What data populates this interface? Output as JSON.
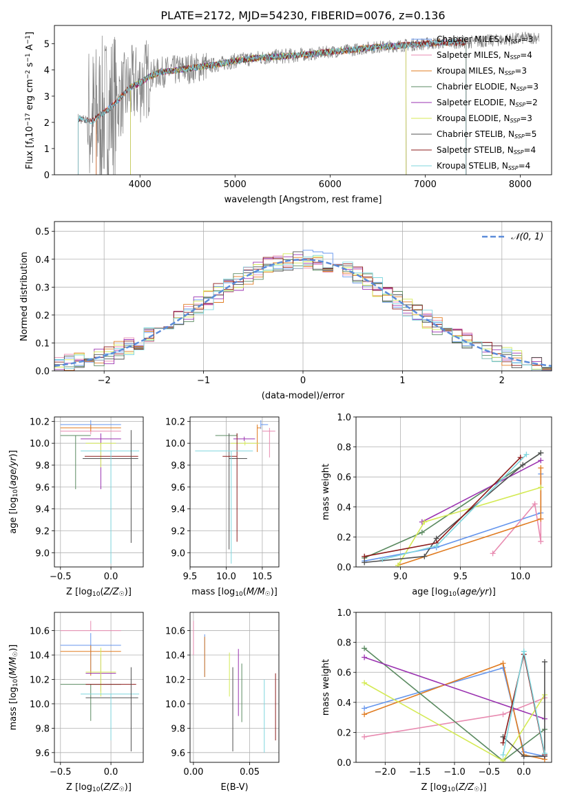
{
  "figure_title": "PLATE=2172, MJD=54230, FIBERID=0076, z=0.136",
  "colors": {
    "series": [
      "#6495ed",
      "#e88ab0",
      "#e07b20",
      "#5a8a60",
      "#9a32b0",
      "#d4ea54",
      "#505050",
      "#8b1a1a",
      "#7fd6de"
    ],
    "obs": "#808080",
    "grid": "#b0b0b0",
    "normal": "#5b8bd9"
  },
  "chart_data": [
    {
      "id": "spectrum",
      "type": "line",
      "title": "PLATE=2172, MJD=54230, FIBERID=0076, z=0.136",
      "xlabel": "wavelength [Angstrom, rest frame]",
      "ylabel": "Flux [f$_\\lambda$10$^{-17}$ erg cm$^{-2}$ s$^{-1}$ A$^{-1}$]",
      "ylabel_parts": [
        "Flux [f",
        "λ",
        "10",
        "−17",
        " erg cm",
        "−2",
        " s",
        "−1",
        " A",
        "−1",
        "]"
      ],
      "xlim": [
        3100,
        8330
      ],
      "ylim": [
        0,
        5.7
      ],
      "xticks": [
        4000,
        5000,
        6000,
        7000,
        8000
      ],
      "yticks": [
        0,
        1,
        2,
        3,
        4,
        5
      ],
      "continuum": [
        [
          3350,
          2.15
        ],
        [
          3500,
          2.05
        ],
        [
          3700,
          2.6
        ],
        [
          3900,
          3.35
        ],
        [
          4000,
          3.5
        ],
        [
          4100,
          3.75
        ],
        [
          4200,
          3.9
        ],
        [
          4400,
          4.0
        ],
        [
          4600,
          4.1
        ],
        [
          4800,
          4.2
        ],
        [
          5000,
          4.35
        ],
        [
          5200,
          4.45
        ],
        [
          5400,
          4.5
        ],
        [
          5600,
          4.55
        ],
        [
          5800,
          4.6
        ],
        [
          6000,
          4.7
        ],
        [
          6200,
          4.75
        ],
        [
          6400,
          4.85
        ],
        [
          6600,
          4.9
        ],
        [
          6800,
          4.95
        ],
        [
          7000,
          5.0
        ],
        [
          7200,
          5.05
        ],
        [
          7400,
          5.05
        ],
        [
          7600,
          5.1
        ],
        [
          7800,
          5.15
        ],
        [
          8000,
          5.2
        ],
        [
          8200,
          5.25
        ]
      ],
      "models": [
        {
          "name": "Chabrier MILES",
          "nssp": 3,
          "range": [
            3540,
            7430
          ]
        },
        {
          "name": "Salpeter MILES",
          "nssp": 4,
          "range": [
            3540,
            7430
          ]
        },
        {
          "name": "Kroupa MILES",
          "nssp": 3,
          "range": [
            3540,
            7430
          ]
        },
        {
          "name": "Chabrier ELODIE",
          "nssp": 3,
          "range": [
            3900,
            6800
          ]
        },
        {
          "name": "Salpeter ELODIE",
          "nssp": 2,
          "range": [
            3900,
            6800
          ]
        },
        {
          "name": "Kroupa ELODIE",
          "nssp": 3,
          "range": [
            3900,
            6800
          ]
        },
        {
          "name": "Chabrier STELIB",
          "nssp": 5,
          "range": [
            3350,
            7430
          ]
        },
        {
          "name": "Salpeter STELIB",
          "nssp": 4,
          "range": [
            3350,
            7430
          ]
        },
        {
          "name": "Kroupa STELIB",
          "nssp": 4,
          "range": [
            3350,
            7430
          ]
        }
      ]
    },
    {
      "id": "residuals",
      "type": "histogram",
      "xlabel": "(data-model)/error",
      "ylabel": "Normed distribution",
      "xlim": [
        -2.5,
        2.5
      ],
      "ylim": [
        0,
        0.535
      ],
      "xticks": [
        -2,
        -1,
        0,
        1,
        2
      ],
      "yticks": [
        0.0,
        0.1,
        0.2,
        0.3,
        0.4,
        0.5
      ],
      "legend": "𝒩(0, 1)",
      "bin_width": 0.1
    },
    {
      "id": "age_vs_Z",
      "type": "errorbar",
      "xlabel": "Z [log10(Z/Z☉)]",
      "ylabel": "age [log10(age/yr)]",
      "xlim": [
        -0.56,
        0.32
      ],
      "ylim": [
        8.87,
        10.24
      ],
      "xticks": [
        -0.5,
        0.0
      ],
      "yticks": [
        9.0,
        9.2,
        9.4,
        9.6,
        9.8,
        10.0,
        10.2
      ],
      "points": [
        {
          "x": -0.2,
          "xerr": [
            0.3,
            0.3
          ],
          "y": 10.17,
          "yerr": [
            0.04,
            0.04
          ]
        },
        {
          "x": -0.2,
          "xerr": [
            0.3,
            0.3
          ],
          "y": 10.11,
          "yerr": [
            0.03,
            0.03
          ]
        },
        {
          "x": -0.2,
          "xerr": [
            0.3,
            0.3
          ],
          "y": 10.14,
          "yerr": [
            0.03,
            0.03
          ]
        },
        {
          "x": -0.35,
          "xerr": [
            0.15,
            0.15
          ],
          "y": 10.07,
          "yerr": [
            0.49,
            0.0
          ]
        },
        {
          "x": -0.1,
          "xerr": [
            0.2,
            0.2
          ],
          "y": 10.04,
          "yerr": [
            0.46,
            0.05
          ]
        },
        {
          "x": -0.1,
          "xerr": [
            0.15,
            0.15
          ],
          "y": 10.0,
          "yerr": [
            0.22,
            0.0
          ]
        },
        {
          "x": 0.02,
          "xerr": [
            0.3,
            0.25
          ],
          "y": 9.86,
          "yerr": [
            0.0,
            0.0
          ]
        },
        {
          "x": 0.02,
          "xerr": [
            0.28,
            0.25
          ],
          "y": 9.88,
          "yerr": [
            0.0,
            0.0
          ]
        },
        {
          "x": 0.0,
          "xerr": [
            0.3,
            0.28
          ],
          "y": 9.93,
          "yerr": [
            1.03,
            0.0
          ]
        }
      ],
      "extra_vertical": [
        {
          "x": 0.2,
          "y0": 9.09,
          "y1": 10.12,
          "series": 6
        }
      ]
    },
    {
      "id": "age_vs_mass",
      "type": "errorbar",
      "xlabel": "mass [log10(M/M☉)]",
      "ylabel": "",
      "xlim": [
        9.5,
        10.73
      ],
      "ylim": [
        8.87,
        10.24
      ],
      "xticks": [
        9.5,
        10.0,
        10.5
      ],
      "yticks": [
        9.0,
        9.2,
        9.4,
        9.6,
        9.8,
        10.0,
        10.2
      ],
      "points": [
        {
          "x": 10.48,
          "xerr": [
            0.0,
            0.1
          ],
          "y": 10.17,
          "yerr": [
            0.04,
            0.04
          ]
        },
        {
          "x": 10.6,
          "xerr": [
            0.1,
            0.08
          ],
          "y": 10.11,
          "yerr": [
            0.24,
            0.03
          ]
        },
        {
          "x": 10.43,
          "xerr": [
            0.0,
            0.05
          ],
          "y": 10.14,
          "yerr": [
            0.22,
            0.03
          ]
        },
        {
          "x": 10.15,
          "xerr": [
            0.3,
            0.0
          ],
          "y": 10.07,
          "yerr": [
            0.02,
            0.02
          ]
        },
        {
          "x": 10.25,
          "xerr": [
            0.15,
            0.15
          ],
          "y": 10.04,
          "yerr": [
            0.02,
            0.02
          ]
        },
        {
          "x": 10.26,
          "xerr": [
            0.2,
            0.2
          ],
          "y": 10.0,
          "yerr": [
            0.02,
            0.02
          ]
        },
        {
          "x": 10.04,
          "xerr": [
            0.0,
            0.25
          ],
          "y": 9.86,
          "yerr": [
            0.83,
            0.23
          ]
        },
        {
          "x": 10.15,
          "xerr": [
            0.2,
            0.0
          ],
          "y": 9.88,
          "yerr": [
            0.78,
            0.21
          ]
        },
        {
          "x": 10.07,
          "xerr": [
            0.5,
            0.3
          ],
          "y": 9.93,
          "yerr": [
            1.03,
            0.0
          ]
        }
      ]
    },
    {
      "id": "weight_vs_age",
      "type": "line",
      "xlabel": "age [log10(age/yr)]",
      "ylabel": "mass weight",
      "xlim": [
        8.63,
        10.26
      ],
      "ylim": [
        0.0,
        1.0
      ],
      "xticks": [
        9.0,
        9.5,
        10.0
      ],
      "yticks": [
        0.0,
        0.2,
        0.4,
        0.6,
        0.8,
        1.0
      ],
      "series": [
        {
          "points": [
            [
              8.7,
              0.04
            ],
            [
              9.3,
              0.13
            ],
            [
              10.17,
              0.36
            ],
            [
              10.17,
              0.62
            ]
          ]
        },
        {
          "points": [
            [
              9.77,
              0.09
            ],
            [
              10.12,
              0.42
            ],
            [
              10.17,
              0.17
            ],
            [
              10.17,
              0.32
            ]
          ]
        },
        {
          "points": [
            [
              8.98,
              0.01
            ],
            [
              10.17,
              0.32
            ],
            [
              10.17,
              0.66
            ]
          ]
        },
        {
          "points": [
            [
              8.7,
              0.06
            ],
            [
              9.18,
              0.23
            ],
            [
              10.17,
              0.76
            ]
          ]
        },
        {
          "points": [
            [
              9.18,
              0.3
            ],
            [
              10.17,
              0.71
            ]
          ]
        },
        {
          "points": [
            [
              8.98,
              0.01
            ],
            [
              9.2,
              0.3
            ],
            [
              10.17,
              0.53
            ]
          ]
        },
        {
          "points": [
            [
              8.7,
              0.03
            ],
            [
              9.2,
              0.07
            ],
            [
              9.3,
              0.19
            ],
            [
              10.02,
              0.68
            ],
            [
              10.17,
              0.76
            ]
          ]
        },
        {
          "points": [
            [
              8.7,
              0.07
            ],
            [
              9.3,
              0.16
            ],
            [
              10.0,
              0.73
            ]
          ]
        },
        {
          "points": [
            [
              8.85,
              0.05
            ],
            [
              9.3,
              0.14
            ],
            [
              10.05,
              0.75
            ]
          ]
        }
      ]
    },
    {
      "id": "mass_vs_Z",
      "type": "errorbar",
      "xlabel": "Z [log10(Z/Z☉)]",
      "ylabel": "mass [log10(M/M☉)]",
      "xlim": [
        -0.56,
        0.32
      ],
      "ylim": [
        9.52,
        10.75
      ],
      "xticks": [
        -0.5,
        0.0
      ],
      "yticks": [
        9.6,
        9.8,
        10.0,
        10.2,
        10.4,
        10.6
      ],
      "points": [
        {
          "x": -0.2,
          "xerr": [
            0.3,
            0.3
          ],
          "y": 10.48,
          "yerr": [
            0.24,
            0.1
          ]
        },
        {
          "x": -0.2,
          "xerr": [
            0.3,
            0.3
          ],
          "y": 10.6,
          "yerr": [
            0.0,
            0.08
          ]
        },
        {
          "x": -0.2,
          "xerr": [
            0.3,
            0.3
          ],
          "y": 10.43,
          "yerr": [
            0.2,
            0.05
          ]
        },
        {
          "x": -0.2,
          "xerr": [
            0.3,
            0.3
          ],
          "y": 10.16,
          "yerr": [
            0.3,
            0.0
          ]
        },
        {
          "x": -0.1,
          "xerr": [
            0.15,
            0.15
          ],
          "y": 10.25,
          "yerr": [
            0.15,
            0.15
          ]
        },
        {
          "x": -0.1,
          "xerr": [
            0.15,
            0.15
          ],
          "y": 10.26,
          "yerr": [
            0.2,
            0.2
          ]
        },
        {
          "x": 0.02,
          "xerr": [
            0.27,
            0.25
          ],
          "y": 10.05,
          "yerr": [
            0.0,
            0.0
          ]
        },
        {
          "x": 0.0,
          "xerr": [
            0.25,
            0.25
          ],
          "y": 10.16,
          "yerr": [
            0.0,
            0.0
          ]
        },
        {
          "x": 0.0,
          "xerr": [
            0.3,
            0.28
          ],
          "y": 10.08,
          "yerr": [
            0.38,
            0.0
          ]
        }
      ],
      "extra_vertical": [
        {
          "x": 0.2,
          "y0": 9.61,
          "y1": 10.3,
          "series": 6
        }
      ]
    },
    {
      "id": "mass_vs_ebv",
      "type": "errorbar",
      "xlabel": "E(B-V)",
      "ylabel": "",
      "xlim": [
        -0.003,
        0.076
      ],
      "ylim": [
        9.52,
        10.75
      ],
      "xticks": [
        0.0,
        0.05
      ],
      "yticks": [
        9.6,
        9.8,
        10.0,
        10.2,
        10.4,
        10.6
      ],
      "points": [
        {
          "x": 0.01,
          "y0": 10.22,
          "y1": 10.57
        },
        {
          "x": 0.0,
          "y0": 10.4,
          "y1": 10.68
        },
        {
          "x": 0.01,
          "y0": 10.22,
          "y1": 10.55
        },
        {
          "x": 0.043,
          "y0": 9.85,
          "y1": 10.33
        },
        {
          "x": 0.04,
          "y0": 9.9,
          "y1": 10.45
        },
        {
          "x": 0.032,
          "y0": 10.06,
          "y1": 10.42
        },
        {
          "x": 0.035,
          "y0": 9.61,
          "y1": 10.3
        },
        {
          "x": 0.073,
          "y0": 9.7,
          "y1": 10.25
        },
        {
          "x": 0.063,
          "y0": 9.6,
          "y1": 10.2
        }
      ]
    },
    {
      "id": "weight_vs_Z",
      "type": "line",
      "xlabel": "Z [log10(Z/Z☉)]",
      "ylabel": "mass weight",
      "xlim": [
        -2.42,
        0.4
      ],
      "ylim": [
        0.0,
        1.0
      ],
      "xticks": [
        -2.0,
        -1.5,
        -1.0,
        -0.5,
        0.0
      ],
      "yticks": [
        0.0,
        0.2,
        0.4,
        0.6,
        0.8,
        1.0
      ],
      "series": [
        {
          "points": [
            [
              -2.3,
              0.36
            ],
            [
              -0.3,
              0.63
            ],
            [
              0.0,
              0.07
            ],
            [
              0.3,
              0.04
            ]
          ]
        },
        {
          "points": [
            [
              -2.3,
              0.17
            ],
            [
              -0.3,
              0.32
            ],
            [
              0.3,
              0.43
            ]
          ]
        },
        {
          "points": [
            [
              -2.3,
              0.32
            ],
            [
              -0.3,
              0.66
            ],
            [
              0.0,
              0.05
            ],
            [
              0.3,
              0.02
            ]
          ]
        },
        {
          "points": [
            [
              -2.3,
              0.76
            ],
            [
              -0.3,
              0.01
            ],
            [
              0.3,
              0.22
            ]
          ]
        },
        {
          "points": [
            [
              -2.3,
              0.7
            ],
            [
              0.3,
              0.29
            ]
          ]
        },
        {
          "points": [
            [
              -2.3,
              0.53
            ],
            [
              -0.3,
              0.01
            ],
            [
              0.3,
              0.45
            ]
          ]
        },
        {
          "points": [
            [
              -0.3,
              0.17
            ],
            [
              0.0,
              0.04
            ],
            [
              0.3,
              0.04
            ],
            [
              0.3,
              0.67
            ]
          ]
        },
        {
          "points": [
            [
              -0.3,
              0.13
            ],
            [
              0.0,
              0.72
            ],
            [
              0.3,
              0.05
            ]
          ]
        },
        {
          "points": [
            [
              -0.3,
              0.05
            ],
            [
              0.0,
              0.74
            ],
            [
              0.3,
              0.06
            ]
          ]
        }
      ]
    }
  ]
}
